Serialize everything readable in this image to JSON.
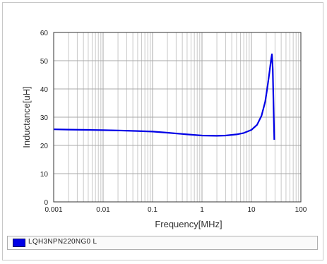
{
  "chart_data": {
    "type": "line",
    "xlabel": "Frequency[MHz]",
    "ylabel": "Inductance[uH]",
    "xscale": "log",
    "xlim": [
      0.001,
      100
    ],
    "ylim": [
      0,
      60
    ],
    "x_ticks": [
      0.001,
      0.01,
      0.1,
      1,
      10,
      100
    ],
    "x_tick_labels": [
      "0.001",
      "0.01",
      "0.1",
      "1",
      "10",
      "100"
    ],
    "y_ticks": [
      0,
      10,
      20,
      30,
      40,
      50,
      60
    ],
    "y_tick_labels": [
      "0",
      "10",
      "20",
      "30",
      "40",
      "50",
      "60"
    ],
    "grid": true,
    "legend_position": "bottom",
    "series": [
      {
        "name": "LQH3NPN220NG0 L",
        "color": "#0000e6",
        "x": [
          0.001,
          0.002,
          0.005,
          0.01,
          0.02,
          0.05,
          0.1,
          0.2,
          0.5,
          1,
          2,
          3,
          5,
          7,
          10,
          13,
          16,
          19,
          21,
          23,
          25,
          26,
          27,
          28,
          29
        ],
        "y": [
          25.7,
          25.6,
          25.5,
          25.4,
          25.3,
          25.1,
          24.9,
          24.5,
          23.9,
          23.5,
          23.4,
          23.5,
          23.9,
          24.4,
          25.5,
          27.3,
          30.5,
          35.5,
          40.5,
          45.5,
          50.5,
          52.3,
          47,
          34,
          22
        ]
      }
    ]
  }
}
